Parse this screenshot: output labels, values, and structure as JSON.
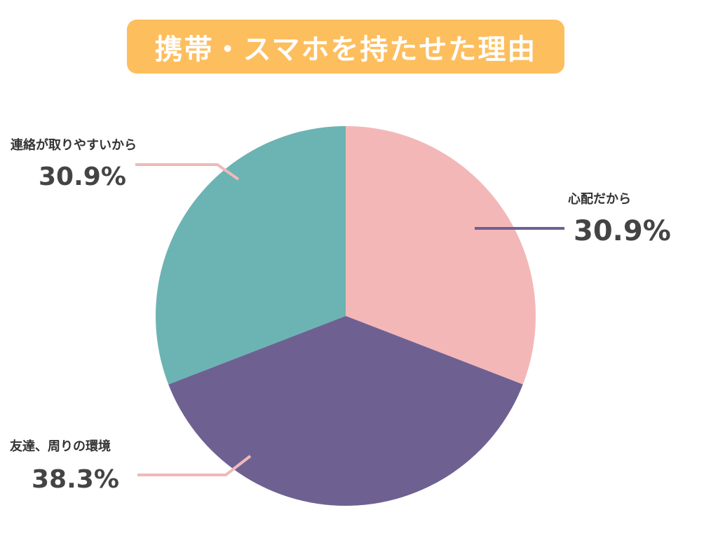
{
  "title": "携帯・スマホを持たせた理由",
  "colors": {
    "title_banner": "#FDBE5E",
    "title_text": "#FFFFFF",
    "slice_pink": "#F4B7B8",
    "slice_purple": "#6E6192",
    "slice_teal": "#6BB4B3",
    "leader_pink": "#F0B9BA",
    "leader_purple": "#6E6192"
  },
  "chart_data": {
    "type": "pie",
    "title": "携帯・スマホを持たせた理由",
    "slices": [
      {
        "label": "心配だから",
        "value": 30.9,
        "value_label": "30.9%",
        "color": "#F4B7B8"
      },
      {
        "label": "友達、周りの環境",
        "value": 38.3,
        "value_label": "38.3%",
        "color": "#6E6192"
      },
      {
        "label": "連絡が取りやすいから",
        "value": 30.9,
        "value_label": "30.9%",
        "color": "#6BB4B3"
      }
    ],
    "start_angle": "12 o'clock",
    "direction": "clockwise",
    "legend": "none"
  }
}
